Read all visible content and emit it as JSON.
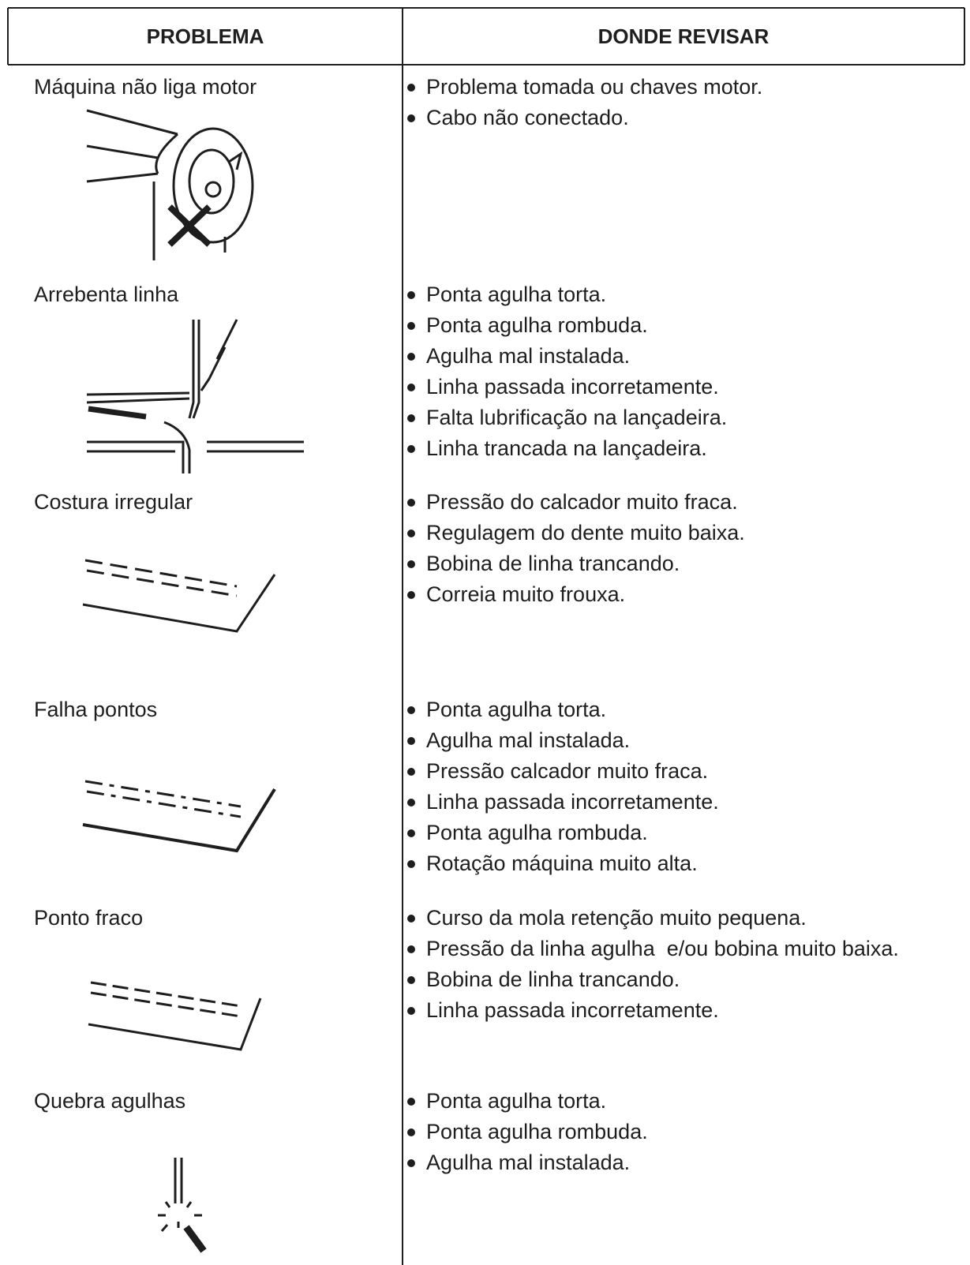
{
  "table": {
    "header": [
      "PROBLEMA",
      "DONDE REVISAR"
    ],
    "rows": [
      {
        "problem": "Máquina não liga motor",
        "checks": [
          "Problema tomada ou chaves motor.",
          "Cabo não conectado."
        ]
      },
      {
        "problem": "Arrebenta linha",
        "checks": [
          "Ponta agulha torta.",
          "Ponta agulha rombuda.",
          "Agulha mal instalada.",
          "Linha passada incorretamente.",
          "Falta lubrificação na lançadeira.",
          "Linha trancada na lançadeira."
        ]
      },
      {
        "problem": "Costura irregular",
        "checks": [
          "Pressão do calcador muito fraca.",
          "Regulagem do dente muito baixa.",
          "Bobina de linha trancando.",
          "Correia muito frouxa."
        ]
      },
      {
        "problem": "Falha pontos",
        "checks": [
          "Ponta agulha torta.",
          "Agulha mal instalada.",
          "Pressão calcador muito fraca.",
          "Linha passada incorretamente.",
          "Ponta agulha rombuda.",
          "Rotação máquina muito alta."
        ]
      },
      {
        "problem": "Ponto fraco",
        "checks": [
          "Curso da mola retenção muito pequena.",
          "Pressão da linha agulha  e/ou bobina muito baixa.",
          "Bobina de linha trancando.",
          "Linha passada incorretamente."
        ]
      },
      {
        "problem": "Quebra agulhas",
        "checks": [
          "Ponta agulha torta.",
          "Ponta agulha rombuda.",
          "Agulha mal instalada."
        ]
      }
    ]
  }
}
